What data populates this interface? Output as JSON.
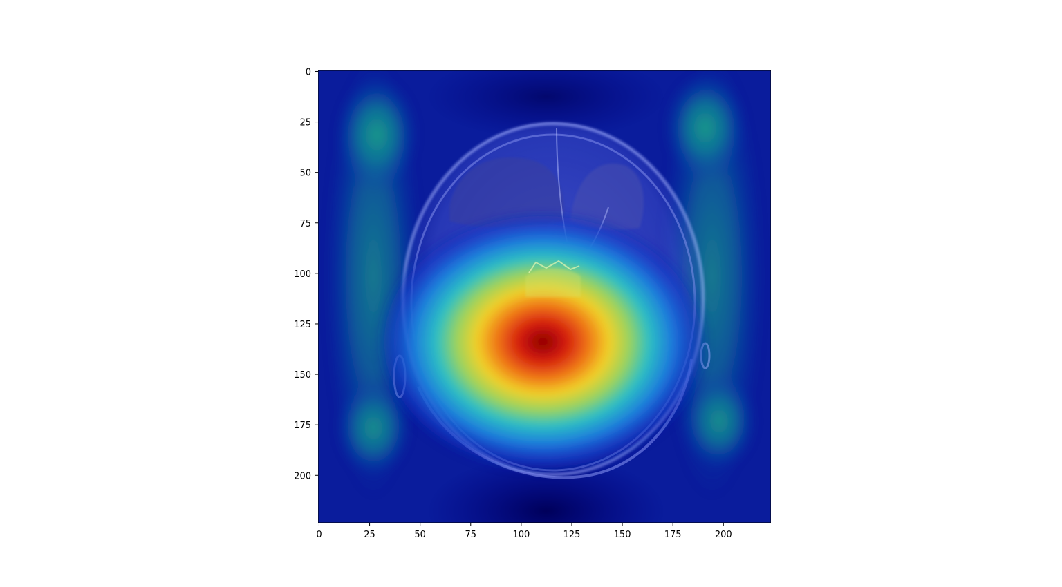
{
  "axes": {
    "x_ticks": [
      "0",
      "25",
      "50",
      "75",
      "100",
      "125",
      "150",
      "175",
      "200"
    ],
    "y_ticks": [
      "0",
      "25",
      "50",
      "75",
      "100",
      "125",
      "150",
      "175",
      "200"
    ],
    "x_range": [
      0,
      224
    ],
    "y_range": [
      224,
      0
    ]
  },
  "image": {
    "content": "brain-mri-axial-slice",
    "overlay": "gradcam-heatmap",
    "colormap": "jet",
    "hotspot_center_data": [
      110,
      133
    ],
    "secondary_warm_regions_data": [
      [
        28,
        35
      ],
      [
        195,
        30
      ],
      [
        28,
        175
      ],
      [
        195,
        175
      ]
    ]
  },
  "colors": {
    "cmap_low": "#00007f",
    "cmap_mid": "#00a5a5",
    "cmap_high": "#c80000",
    "brain_tint": "#a6b0ff"
  }
}
